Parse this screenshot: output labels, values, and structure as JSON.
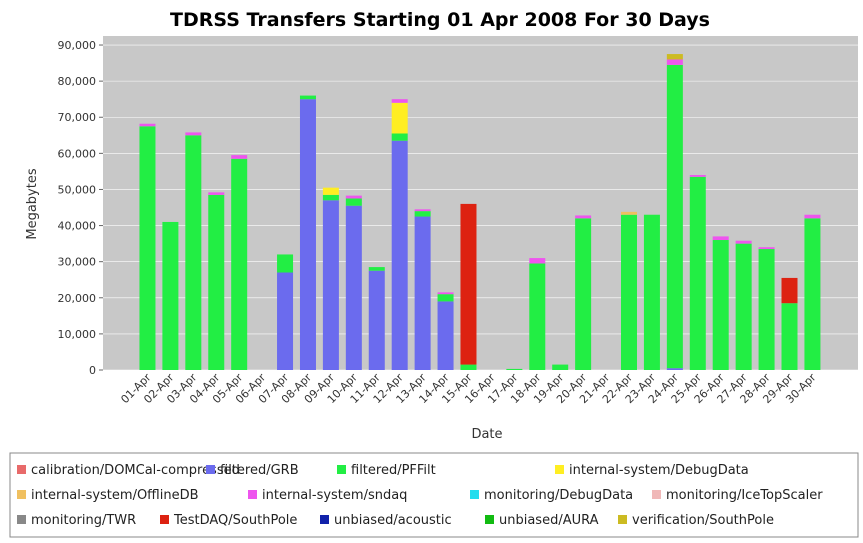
{
  "chart_data": {
    "type": "stacked_bar",
    "title": "TDRSS Transfers Starting 01 Apr 2008 For 30 Days",
    "x_label": "Date",
    "y_label": "Megabytes",
    "categories": [
      "01-Apr",
      "02-Apr",
      "03-Apr",
      "04-Apr",
      "05-Apr",
      "06-Apr",
      "07-Apr",
      "08-Apr",
      "09-Apr",
      "10-Apr",
      "11-Apr",
      "12-Apr",
      "13-Apr",
      "14-Apr",
      "15-Apr",
      "16-Apr",
      "17-Apr",
      "18-Apr",
      "19-Apr",
      "20-Apr",
      "21-Apr",
      "22-Apr",
      "23-Apr",
      "24-Apr",
      "25-Apr",
      "26-Apr",
      "27-Apr",
      "28-Apr",
      "29-Apr",
      "30-Apr"
    ],
    "ylim": [
      0,
      92500
    ],
    "yticks": [
      0,
      {
        "value": 10000,
        "label": "10,000"
      },
      {
        "value": 20000,
        "label": "20,000"
      },
      {
        "value": 30000,
        "label": "30,000"
      },
      {
        "value": 40000,
        "label": "40,000"
      },
      {
        "value": 50000,
        "label": "50,000"
      },
      {
        "value": 60000,
        "label": "60,000"
      },
      {
        "value": 70000,
        "label": "70,000"
      },
      {
        "value": 80000,
        "label": "80,000"
      },
      {
        "value": 90000,
        "label": "90,000"
      }
    ],
    "grid": true,
    "series": [
      {
        "name": "calibration/DOMCal-compressed",
        "color": "#e86a6a",
        "values": [
          0,
          0,
          0,
          0,
          0,
          0,
          0,
          0,
          0,
          0,
          0,
          0,
          0,
          0,
          0,
          0,
          0,
          0,
          0,
          0,
          0,
          0,
          0,
          0,
          0,
          0,
          0,
          0,
          0,
          0
        ]
      },
      {
        "name": "filtered/GRB",
        "color": "#6b6bee",
        "values": [
          0,
          0,
          0,
          0,
          0,
          0,
          27000,
          75000,
          47000,
          45500,
          27500,
          63500,
          42500,
          19000,
          0,
          0,
          0,
          0,
          0,
          0,
          0,
          0,
          0,
          500,
          0,
          0,
          0,
          0,
          0,
          0
        ]
      },
      {
        "name": "filtered/PFFilt",
        "color": "#22ee44",
        "values": [
          67500,
          41000,
          65000,
          48500,
          58500,
          0,
          5000,
          1000,
          1500,
          2000,
          1000,
          2000,
          1500,
          2000,
          1500,
          0,
          300,
          29500,
          1500,
          42000,
          0,
          43000,
          43000,
          84000,
          53500,
          36000,
          35000,
          33500,
          18500,
          42000
        ]
      },
      {
        "name": "internal-system/DebugData",
        "color": "#ffee22",
        "values": [
          0,
          0,
          0,
          0,
          0,
          0,
          0,
          0,
          2000,
          0,
          0,
          8500,
          0,
          0,
          0,
          0,
          0,
          0,
          0,
          0,
          0,
          0,
          0,
          0,
          0,
          0,
          0,
          0,
          0,
          0
        ]
      },
      {
        "name": "internal-system/OfflineDB",
        "color": "#f0c060",
        "values": [
          0,
          0,
          0,
          0,
          0,
          0,
          0,
          0,
          0,
          0,
          0,
          0,
          0,
          0,
          0,
          0,
          0,
          0,
          0,
          0,
          0,
          800,
          0,
          0,
          0,
          0,
          0,
          0,
          0,
          0
        ]
      },
      {
        "name": "internal-system/sndaq",
        "color": "#ee55ee",
        "values": [
          700,
          0,
          800,
          700,
          1000,
          0,
          0,
          0,
          0,
          800,
          0,
          1000,
          500,
          500,
          0,
          0,
          0,
          1500,
          0,
          800,
          0,
          0,
          0,
          1500,
          500,
          1000,
          800,
          500,
          0,
          1000
        ]
      },
      {
        "name": "monitoring/DebugData",
        "color": "#22ddee",
        "values": [
          0,
          0,
          0,
          0,
          0,
          0,
          0,
          0,
          0,
          0,
          0,
          0,
          0,
          0,
          0,
          0,
          0,
          0,
          0,
          0,
          0,
          0,
          0,
          0,
          0,
          0,
          0,
          0,
          0,
          0
        ]
      },
      {
        "name": "monitoring/IceTopScaler",
        "color": "#f0b8b8",
        "values": [
          0,
          0,
          0,
          0,
          0,
          0,
          0,
          0,
          0,
          0,
          0,
          0,
          0,
          0,
          0,
          0,
          0,
          0,
          0,
          0,
          0,
          0,
          0,
          0,
          0,
          0,
          0,
          0,
          0,
          0
        ]
      },
      {
        "name": "monitoring/TWR",
        "color": "#888888",
        "values": [
          0,
          0,
          0,
          0,
          0,
          0,
          0,
          0,
          0,
          0,
          0,
          0,
          0,
          0,
          0,
          0,
          0,
          0,
          0,
          0,
          0,
          0,
          0,
          0,
          0,
          0,
          0,
          0,
          0,
          0
        ]
      },
      {
        "name": "TestDAQ/SouthPole",
        "color": "#dd2211",
        "values": [
          0,
          0,
          0,
          0,
          0,
          0,
          0,
          0,
          0,
          0,
          0,
          0,
          0,
          0,
          44500,
          0,
          0,
          0,
          0,
          0,
          0,
          0,
          0,
          0,
          0,
          0,
          0,
          0,
          7000,
          0
        ]
      },
      {
        "name": "unbiased/acoustic",
        "color": "#1122aa",
        "values": [
          0,
          0,
          0,
          0,
          0,
          0,
          0,
          0,
          0,
          0,
          0,
          0,
          0,
          0,
          0,
          0,
          0,
          0,
          0,
          0,
          0,
          0,
          0,
          0,
          0,
          0,
          0,
          0,
          0,
          0
        ]
      },
      {
        "name": "unbiased/AURA",
        "color": "#11bb11",
        "values": [
          0,
          0,
          0,
          0,
          0,
          0,
          0,
          0,
          0,
          0,
          0,
          0,
          0,
          0,
          0,
          0,
          0,
          0,
          0,
          0,
          0,
          0,
          0,
          0,
          0,
          0,
          0,
          0,
          0,
          0
        ]
      },
      {
        "name": "verification/SouthPole",
        "color": "#ccbb22",
        "values": [
          0,
          0,
          0,
          0,
          0,
          0,
          0,
          0,
          0,
          0,
          0,
          0,
          0,
          0,
          0,
          0,
          0,
          0,
          0,
          0,
          0,
          0,
          0,
          1500,
          0,
          0,
          0,
          0,
          0,
          0
        ]
      }
    ]
  }
}
